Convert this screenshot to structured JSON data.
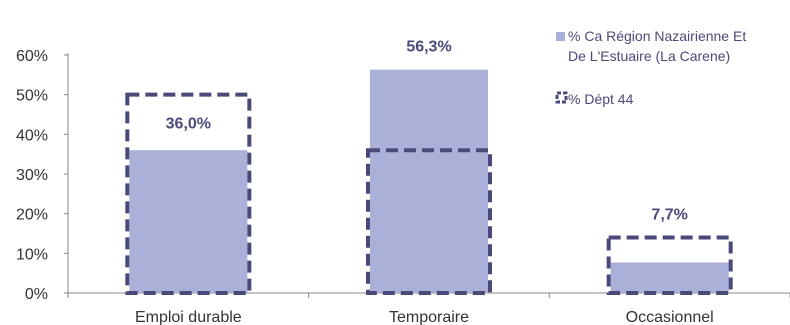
{
  "chart_data": {
    "type": "bar",
    "categories": [
      "Emploi durable",
      "Temporaire",
      "Occasionnel"
    ],
    "series": [
      {
        "name": "% Ca Région Nazairienne Et De L'Estuaire (La Carene)",
        "lines": [
          "% Ca Région Nazairienne Et",
          "De L'Estuaire (La Carene)"
        ],
        "values": [
          36.0,
          56.3,
          7.7
        ],
        "color": "#aab0d8",
        "style": "filled"
      },
      {
        "name": "% Dépt 44",
        "lines": [
          "% Dépt 44"
        ],
        "values": [
          50.0,
          36.0,
          14.0
        ],
        "color": "#4a4a7a",
        "style": "dashed-outline"
      }
    ],
    "data_labels": [
      "36,0%",
      "56,3%",
      "7,7%"
    ],
    "y_ticks": [
      "0%",
      "10%",
      "20%",
      "30%",
      "40%",
      "50%",
      "60%"
    ],
    "ylim": [
      0,
      60
    ],
    "legend_position": "top-right",
    "grid": false
  }
}
